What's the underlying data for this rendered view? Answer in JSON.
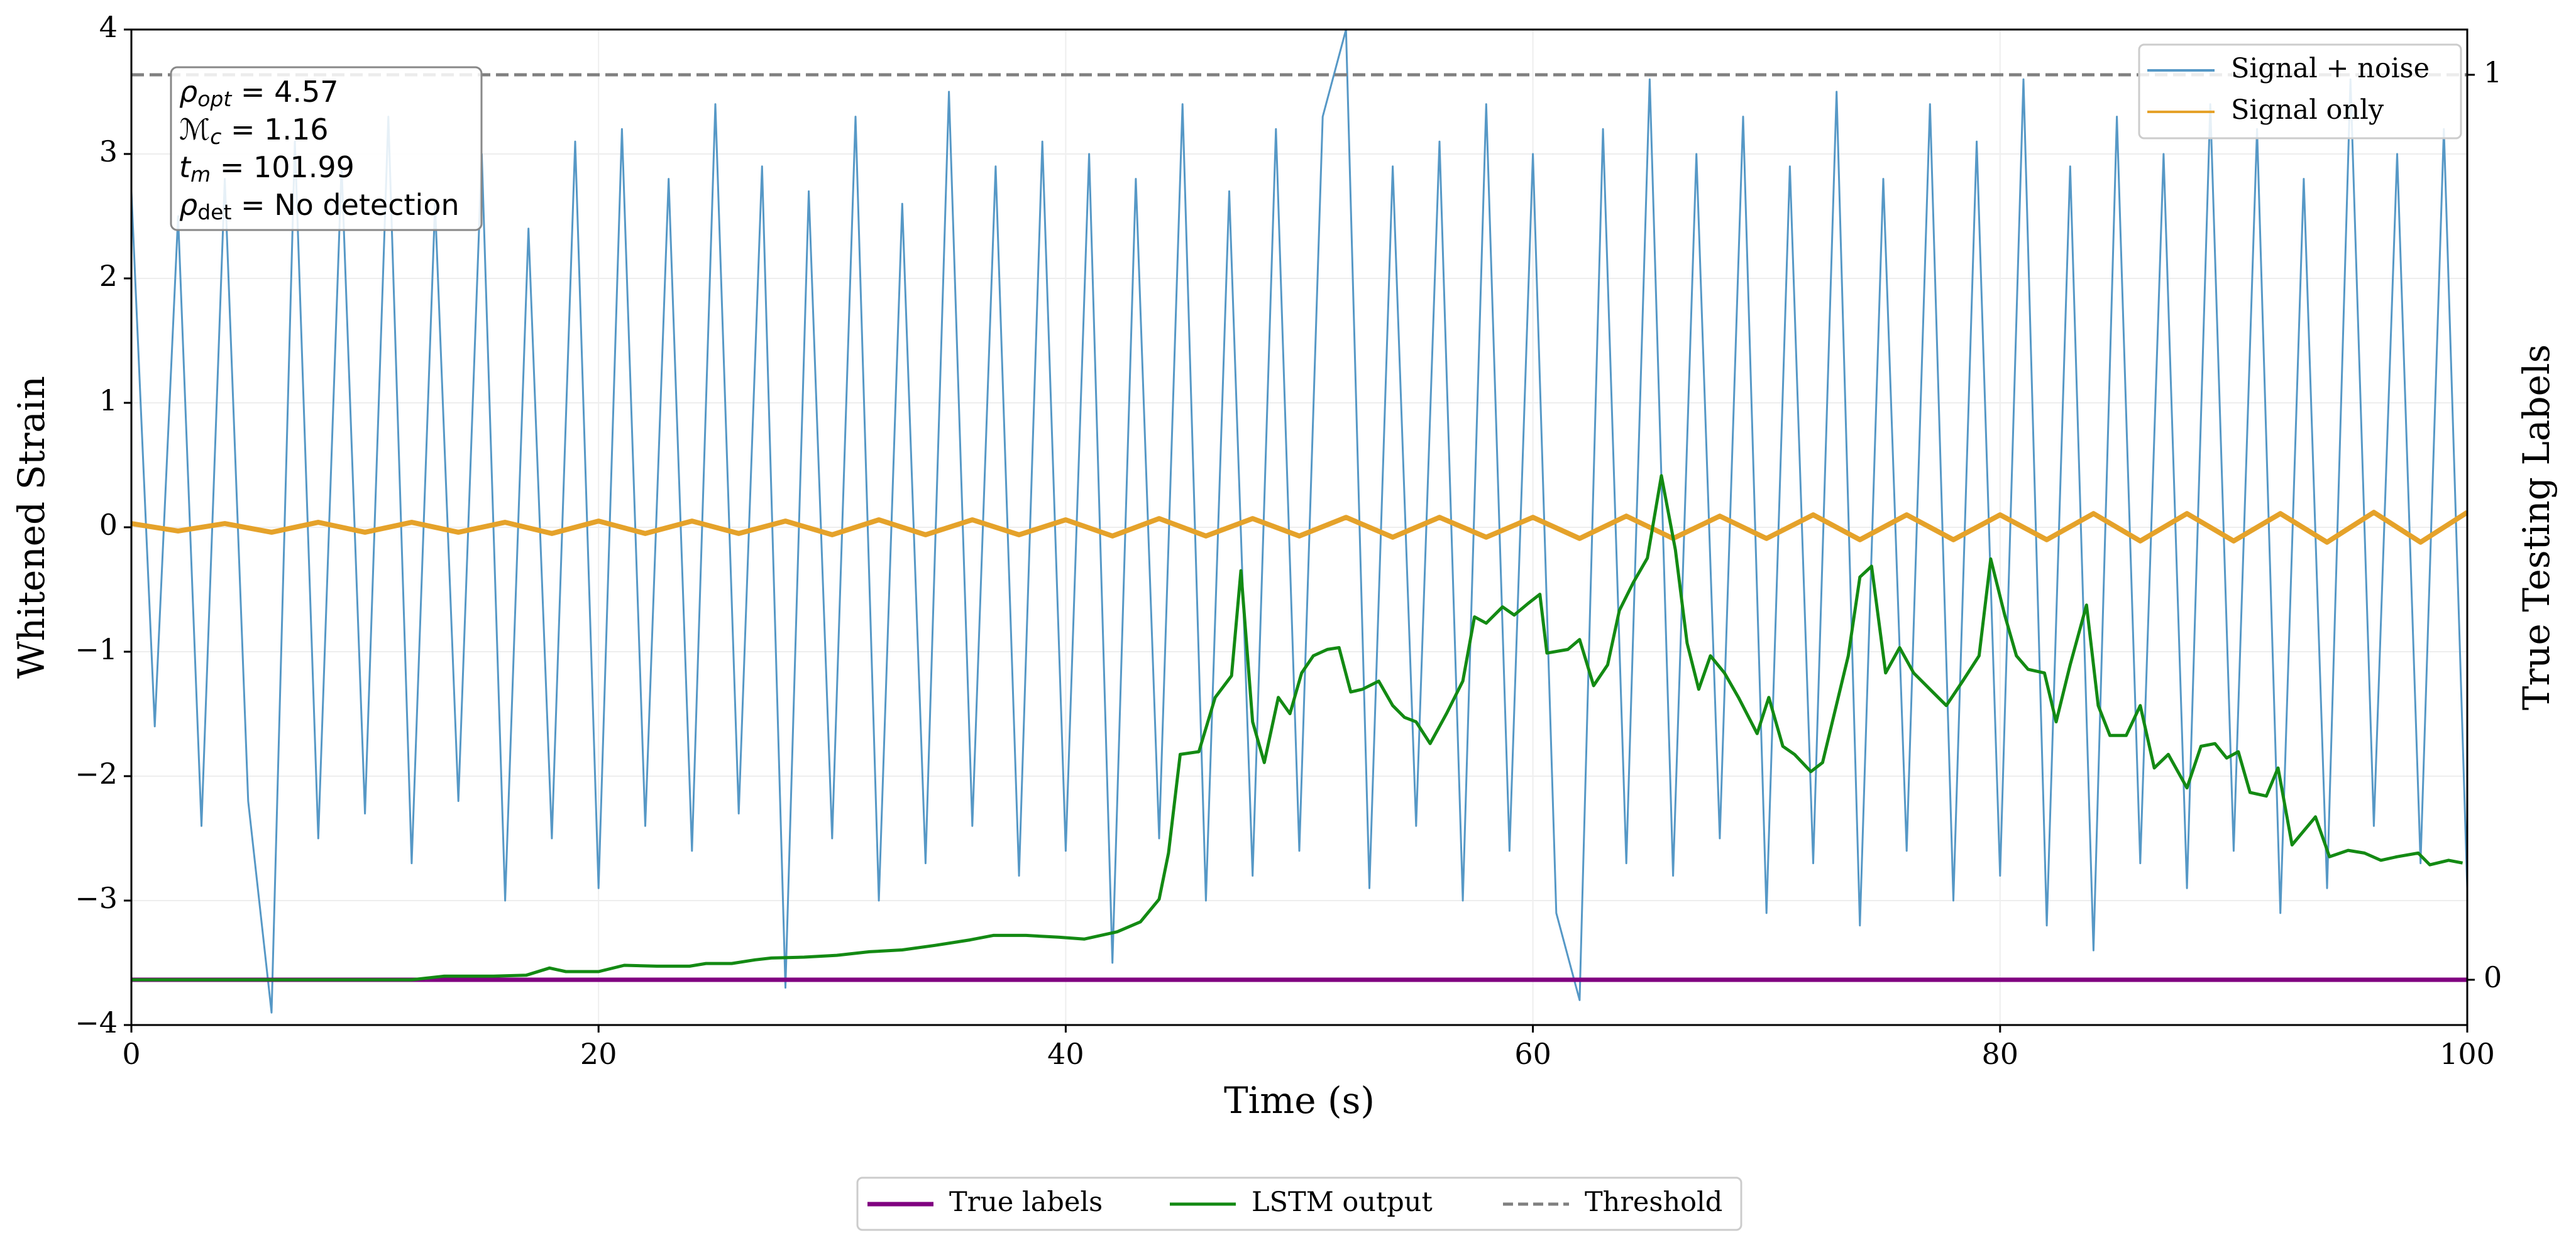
{
  "chart_data": {
    "type": "line",
    "xlabel": "Time (s)",
    "ylabel": "Whitened Strain",
    "y2label": "True Testing Labels",
    "xlim": [
      0,
      100
    ],
    "xticks": [
      0,
      20,
      40,
      60,
      80,
      100
    ],
    "ylim": [
      -4,
      4
    ],
    "yticks": [
      {
        "value": -4,
        "label": "−4"
      },
      {
        "value": -3,
        "label": "−3"
      },
      {
        "value": -2,
        "label": "−2"
      },
      {
        "value": -1,
        "label": "−1"
      },
      0,
      1,
      2,
      3,
      4
    ],
    "y2lim": [
      -0.05,
      1.05
    ],
    "y2ticks": [
      0,
      1
    ],
    "grid": true,
    "series": [
      {
        "name": "Signal + noise",
        "color": "#5698c6",
        "axis": "y",
        "legend": "upper right",
        "width": 3,
        "x": [
          0,
          1,
          2,
          3,
          4,
          5,
          6,
          7,
          8,
          9,
          10,
          11,
          12,
          13,
          14,
          15,
          16,
          17,
          18,
          19,
          20,
          21,
          22,
          23,
          24,
          25,
          26,
          27,
          28,
          29,
          30,
          31,
          32,
          33,
          34,
          35,
          36,
          37,
          38,
          39,
          40,
          41,
          42,
          43,
          44,
          45,
          46,
          47,
          48,
          49,
          50,
          51,
          52,
          53,
          54,
          55,
          56,
          57,
          58,
          59,
          60,
          61,
          62,
          63,
          64,
          65,
          66,
          67,
          68,
          69,
          70,
          71,
          72,
          73,
          74,
          75,
          76,
          77,
          78,
          79,
          80,
          81,
          82,
          83,
          84,
          85,
          86,
          87,
          88,
          89,
          90,
          91,
          92,
          93,
          94,
          95,
          96,
          97,
          98,
          99,
          100
        ],
        "values": [
          2.7,
          -1.6,
          2.5,
          -2.4,
          2.8,
          -2.2,
          -3.9,
          3.1,
          -2.5,
          2.9,
          -2.3,
          3.3,
          -2.7,
          2.6,
          -2.2,
          3.0,
          -3.0,
          2.4,
          -2.5,
          3.1,
          -2.9,
          3.2,
          -2.4,
          2.8,
          -2.6,
          3.4,
          -2.3,
          2.9,
          -3.7,
          2.7,
          -2.5,
          3.3,
          -3.0,
          2.6,
          -2.7,
          3.5,
          -2.4,
          2.9,
          -2.8,
          3.1,
          -2.6,
          3.0,
          -3.5,
          2.8,
          -2.5,
          3.4,
          -3.0,
          2.7,
          -2.8,
          3.2,
          -2.6,
          3.3,
          4.0,
          -2.9,
          2.9,
          -2.4,
          3.1,
          -3.0,
          3.4,
          -2.6,
          3.0,
          -3.1,
          -3.8,
          3.2,
          -2.7,
          3.6,
          -2.8,
          3.0,
          -2.5,
          3.3,
          -3.1,
          2.9,
          -2.7,
          3.5,
          -3.2,
          2.8,
          -2.6,
          3.4,
          -3.0,
          3.1,
          -2.8,
          3.6,
          -3.2,
          2.9,
          -3.4,
          3.3,
          -2.7,
          3.0,
          -2.9,
          3.4,
          -2.6,
          3.2,
          -3.1,
          2.8,
          -2.9,
          3.6,
          -2.4,
          3.0,
          -2.7,
          3.2,
          -2.9
        ]
      },
      {
        "name": "Signal only",
        "color": "#e5a22a",
        "axis": "y",
        "legend": "upper right",
        "width": 8,
        "x": [
          0,
          2,
          4,
          6,
          8,
          10,
          12,
          14,
          16,
          18,
          20,
          22,
          24,
          26,
          28,
          30,
          32,
          34,
          36,
          38,
          40,
          42,
          44,
          46,
          48,
          50,
          52,
          54,
          56,
          58,
          60,
          62,
          64,
          66,
          68,
          70,
          72,
          74,
          76,
          78,
          80,
          82,
          84,
          86,
          88,
          90,
          92,
          94,
          96,
          98,
          100
        ],
        "values": [
          0.03,
          -0.03,
          0.03,
          -0.04,
          0.04,
          -0.04,
          0.04,
          -0.04,
          0.04,
          -0.05,
          0.05,
          -0.05,
          0.05,
          -0.05,
          0.05,
          -0.06,
          0.06,
          -0.06,
          0.06,
          -0.06,
          0.06,
          -0.07,
          0.07,
          -0.07,
          0.07,
          -0.07,
          0.08,
          -0.08,
          0.08,
          -0.08,
          0.08,
          -0.09,
          0.09,
          -0.09,
          0.09,
          -0.09,
          0.1,
          -0.1,
          0.1,
          -0.1,
          0.1,
          -0.1,
          0.11,
          -0.11,
          0.11,
          -0.11,
          0.11,
          -0.12,
          0.12,
          -0.12,
          0.12
        ]
      },
      {
        "name": "True labels",
        "color": "#800080",
        "axis": "y2",
        "legend": "lower center",
        "width": 7,
        "x": [
          0,
          100
        ],
        "values": [
          0,
          0
        ]
      },
      {
        "name": "LSTM output",
        "color": "#138a13",
        "axis": "y2",
        "legend": "lower center",
        "width": 5,
        "x": [
          0,
          12,
          13.4,
          15.5,
          16.9,
          17.9,
          18.6,
          20,
          21.1,
          22.5,
          23.9,
          24.6,
          25.7,
          26.7,
          27.4,
          28.8,
          30.2,
          31.6,
          33,
          34.4,
          35.9,
          36.9,
          38.3,
          39.7,
          40.8,
          42.2,
          43.2,
          44,
          44.4,
          44.9,
          45.7,
          46.4,
          47.1,
          47.5,
          48,
          48.5,
          49.1,
          49.6,
          50.1,
          50.6,
          51.2,
          51.7,
          52.2,
          52.7,
          53.4,
          54,
          54.5,
          55,
          55.6,
          56.3,
          57,
          57.5,
          58,
          58.7,
          59.2,
          59.8,
          60.3,
          60.6,
          61.5,
          62,
          62.6,
          63.2,
          63.7,
          64.3,
          64.9,
          65.5,
          66.1,
          66.6,
          67.1,
          67.6,
          68.2,
          68.8,
          69.6,
          70.1,
          70.7,
          71.2,
          71.9,
          72.4,
          73.5,
          74,
          74.5,
          75.1,
          75.7,
          76.3,
          77,
          77.7,
          78.4,
          79.1,
          79.6,
          80.2,
          80.7,
          81.2,
          81.9,
          82.4,
          83,
          83.7,
          84.2,
          84.7,
          85.4,
          86,
          86.6,
          87.2,
          88,
          88.6,
          89.2,
          89.7,
          90.2,
          90.7,
          91.4,
          91.9,
          92.5,
          93.5,
          94.1,
          94.9,
          95.6,
          96.3,
          97,
          97.9,
          98.4,
          99.2,
          99.8
        ],
        "values": [
          0,
          0,
          0.004,
          0.004,
          0.005,
          0.013,
          0.009,
          0.009,
          0.016,
          0.015,
          0.015,
          0.018,
          0.018,
          0.022,
          0.024,
          0.025,
          0.027,
          0.031,
          0.033,
          0.038,
          0.044,
          0.049,
          0.049,
          0.047,
          0.045,
          0.053,
          0.064,
          0.089,
          0.14,
          0.249,
          0.252,
          0.312,
          0.336,
          0.452,
          0.285,
          0.24,
          0.312,
          0.294,
          0.339,
          0.358,
          0.365,
          0.367,
          0.318,
          0.321,
          0.33,
          0.303,
          0.29,
          0.285,
          0.261,
          0.294,
          0.33,
          0.401,
          0.394,
          0.412,
          0.403,
          0.416,
          0.426,
          0.361,
          0.365,
          0.376,
          0.325,
          0.348,
          0.408,
          0.439,
          0.466,
          0.557,
          0.475,
          0.372,
          0.321,
          0.358,
          0.339,
          0.312,
          0.272,
          0.312,
          0.258,
          0.249,
          0.23,
          0.24,
          0.358,
          0.445,
          0.457,
          0.339,
          0.367,
          0.339,
          0.321,
          0.303,
          0.33,
          0.358,
          0.465,
          0.403,
          0.358,
          0.343,
          0.339,
          0.285,
          0.348,
          0.414,
          0.303,
          0.27,
          0.27,
          0.303,
          0.234,
          0.249,
          0.212,
          0.258,
          0.261,
          0.245,
          0.252,
          0.207,
          0.203,
          0.234,
          0.149,
          0.18,
          0.136,
          0.143,
          0.14,
          0.132,
          0.136,
          0.14,
          0.127,
          0.132,
          0.129
        ]
      }
    ],
    "threshold": {
      "name": "Threshold",
      "value": 1,
      "axis": "y2",
      "color": "#808080",
      "legend": "lower center"
    },
    "annotations": [
      {
        "symbol": "ρ",
        "sub": "opt",
        "text": " = 4.57"
      },
      {
        "symbol": "ℳ",
        "sub": "c",
        "text": " = 1.16"
      },
      {
        "symbol": "t",
        "sub": "m",
        "text": " = 101.99"
      },
      {
        "symbol": "ρ",
        "sub": "det",
        "text": " = No detection"
      }
    ]
  }
}
